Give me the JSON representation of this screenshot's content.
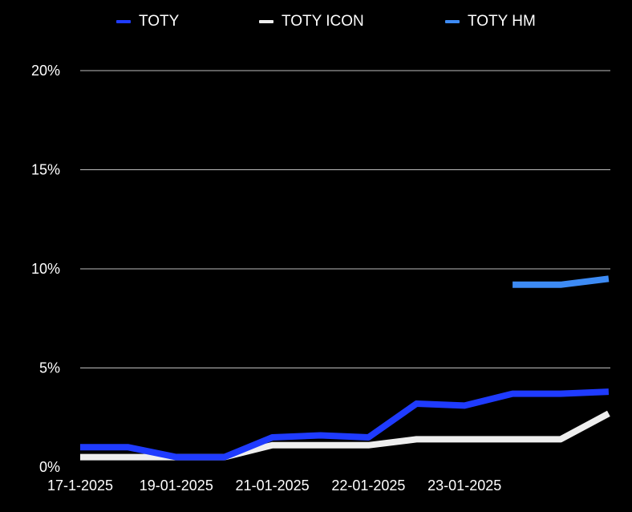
{
  "chart_data": {
    "type": "line",
    "title": "",
    "xlabel": "",
    "ylabel": "",
    "ylim": [
      0,
      20
    ],
    "yticks": [
      {
        "value": 0,
        "label": "0%"
      },
      {
        "value": 5,
        "label": "5%"
      },
      {
        "value": 10,
        "label": "10%"
      },
      {
        "value": 15,
        "label": "15%"
      },
      {
        "value": 20,
        "label": "20%"
      }
    ],
    "grid": true,
    "legend_position": "top",
    "x_points": 12,
    "xtick_labels": [
      {
        "index": 0,
        "label": "17-1-2025"
      },
      {
        "index": 2,
        "label": "19-01-2025"
      },
      {
        "index": 4,
        "label": "21-01-2025"
      },
      {
        "index": 6,
        "label": "22-01-2025"
      },
      {
        "index": 8,
        "label": "23-01-2025"
      }
    ],
    "series": [
      {
        "name": "TOTY",
        "color": "#1f3bff",
        "values": [
          1.0,
          1.0,
          0.5,
          0.5,
          1.5,
          1.6,
          1.5,
          3.2,
          3.1,
          3.7,
          3.7,
          3.8
        ]
      },
      {
        "name": "TOTY ICON",
        "color": "#eeeeee",
        "values": [
          0.5,
          0.5,
          0.5,
          0.5,
          1.1,
          1.1,
          1.1,
          1.4,
          1.4,
          1.4,
          1.4,
          2.7
        ]
      },
      {
        "name": "TOTY HM",
        "color": "#3d8bf5",
        "values": [
          null,
          null,
          null,
          null,
          null,
          null,
          null,
          null,
          null,
          9.2,
          9.2,
          9.5
        ]
      }
    ]
  }
}
